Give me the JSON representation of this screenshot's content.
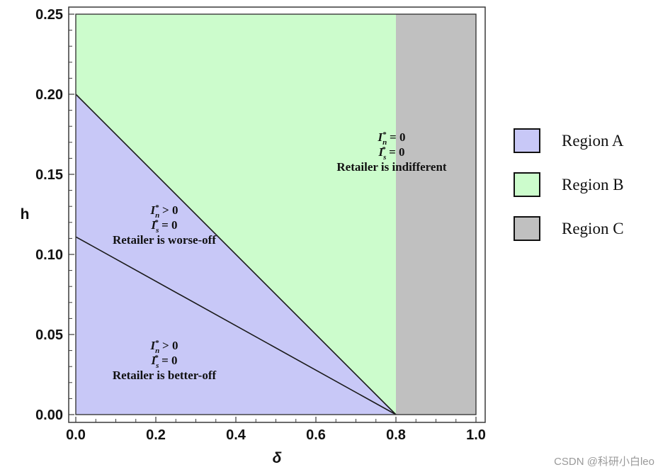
{
  "chart_data": {
    "type": "area",
    "xlabel": "δ",
    "ylabel": "h",
    "xlim": [
      0,
      1
    ],
    "ylim": [
      0,
      0.25
    ],
    "x_ticks": [
      "0.0",
      "0.2",
      "0.4",
      "0.6",
      "0.8",
      "1.0"
    ],
    "y_ticks": [
      "0.00",
      "0.05",
      "0.10",
      "0.15",
      "0.20",
      "0.25"
    ],
    "boundaries": [
      {
        "points": [
          [
            0,
            0.2
          ],
          [
            0.8,
            0
          ]
        ]
      },
      {
        "points": [
          [
            0,
            0.111
          ],
          [
            0.8,
            0
          ]
        ]
      },
      {
        "points": [
          [
            0.8,
            0
          ],
          [
            0.8,
            0.25
          ]
        ]
      }
    ],
    "regions": [
      {
        "name": "Region A",
        "color": "#c8c8f7",
        "polygon": [
          [
            0,
            0
          ],
          [
            0,
            0.2
          ],
          [
            0.8,
            0
          ]
        ]
      },
      {
        "name": "Region B",
        "color": "#ccfccc",
        "polygon": [
          [
            0,
            0.2
          ],
          [
            0,
            0.25
          ],
          [
            0.8,
            0.25
          ],
          [
            0.8,
            0
          ]
        ]
      },
      {
        "name": "Region C",
        "color": "#c0c0c0",
        "polygon": [
          [
            0.8,
            0
          ],
          [
            0.8,
            0.25
          ],
          [
            1,
            0.25
          ],
          [
            1,
            0
          ]
        ]
      }
    ],
    "annotations": [
      {
        "lines": [
          {
            "i": "I",
            "sub": "n",
            "rel": " = 0"
          },
          {
            "i": "I",
            "sub": "s",
            "rel": " = 0"
          },
          {
            "text": "Retailer is indifferent"
          }
        ]
      },
      {
        "lines": [
          {
            "i": "I",
            "sub": "n",
            "rel": " > 0"
          },
          {
            "i": "I",
            "sub": "s",
            "rel": " = 0"
          },
          {
            "text": "Retailer is worse-off"
          }
        ]
      },
      {
        "lines": [
          {
            "i": "I",
            "sub": "n",
            "rel": " > 0"
          },
          {
            "i": "I",
            "sub": "s",
            "rel": " = 0"
          },
          {
            "text": "Retailer is better-off"
          }
        ]
      }
    ],
    "legend": {
      "position": "right",
      "items": [
        "Region A",
        "Region B",
        "Region C"
      ]
    }
  },
  "watermark": "CSDN @科研小白leo"
}
